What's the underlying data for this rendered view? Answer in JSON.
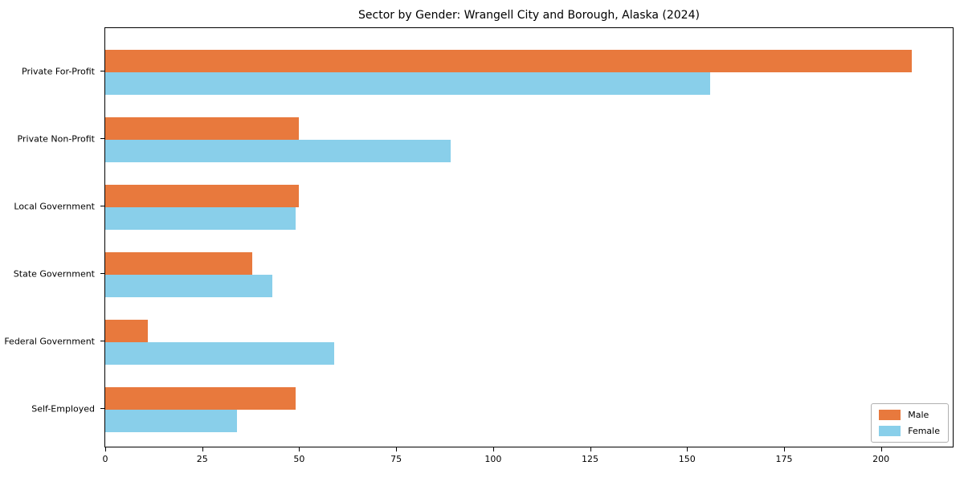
{
  "chart_data": {
    "type": "bar",
    "orientation": "horizontal",
    "title": "Sector by Gender: Wrangell City and Borough, Alaska (2024)",
    "categories": [
      "Private For-Profit",
      "Private Non-Profit",
      "Local Government",
      "State Government",
      "Federal Government",
      "Self-Employed"
    ],
    "series": [
      {
        "name": "Male",
        "color": "#e8793d",
        "values": [
          208,
          50,
          50,
          38,
          11,
          49
        ]
      },
      {
        "name": "Female",
        "color": "#89cfea",
        "values": [
          156,
          89,
          49,
          43,
          59,
          34
        ]
      }
    ],
    "x_ticks": [
      0,
      25,
      50,
      75,
      100,
      125,
      150,
      175,
      200
    ],
    "xlim": [
      0,
      218.5
    ],
    "xlabel": "",
    "ylabel": "",
    "grid": false,
    "legend_position": "lower right",
    "colors": {
      "background": "#ffffff",
      "spine": "#000000",
      "text": "#000000"
    }
  }
}
